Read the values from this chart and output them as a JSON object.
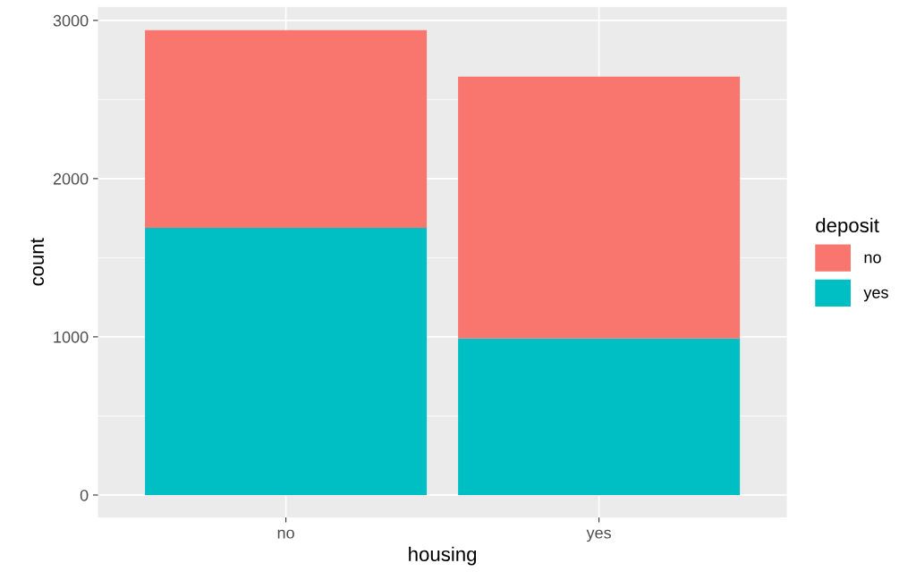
{
  "chart_data": {
    "type": "bar",
    "xlabel": "housing",
    "ylabel": "count",
    "legend_title": "deposit",
    "categories": [
      "no",
      "yes"
    ],
    "stacked": true,
    "series": [
      {
        "name": "yes",
        "color": "#00bfc4",
        "values": [
          1689,
          989
        ]
      },
      {
        "name": "no",
        "color": "#f8766d",
        "values": [
          1249,
          1655
        ]
      }
    ],
    "ylim": [
      -141,
      3085
    ],
    "yticks": [
      0,
      1000,
      2000,
      3000
    ],
    "grid": true,
    "legend": "right"
  }
}
